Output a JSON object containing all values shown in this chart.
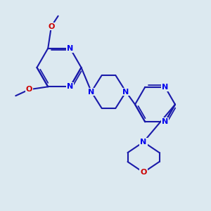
{
  "background_color": "#dce9f0",
  "bond_color": "#1a1aaa",
  "bond_width": 1.5,
  "atom_colors": {
    "N": "#0000ee",
    "O": "#cc0000",
    "C": "#111111"
  },
  "figsize": [
    3.0,
    3.0
  ],
  "dpi": 100,
  "xlim": [
    0,
    10
  ],
  "ylim": [
    0,
    10
  ]
}
